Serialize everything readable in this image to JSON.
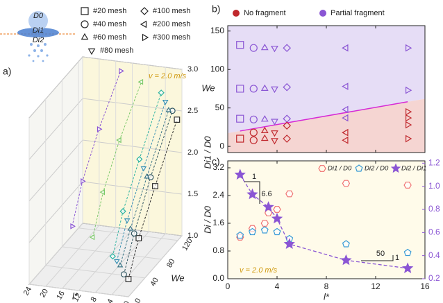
{
  "chart_data": [
    {
      "type": "scatter3d",
      "panel_label": "a)",
      "schematic_labels": [
        "D0",
        "Di1",
        "Di2"
      ],
      "annotation": "v = 2.0 m/s",
      "xlabel": "l*",
      "ylabel": "We",
      "zlabel": "Di1 / D0",
      "xlim": [
        0,
        24
      ],
      "xticks": [
        0,
        4,
        8,
        12,
        16,
        20,
        24
      ],
      "ylim": [
        0,
        130
      ],
      "yticks": [
        0,
        40,
        80,
        120
      ],
      "zlim": [
        1,
        3
      ],
      "zticks": [
        {
          "value": 1,
          "label": "1.0"
        },
        {
          "value": 1.5,
          "label": "1.5"
        },
        {
          "value": 2,
          "label": "2.0"
        },
        {
          "value": 2.5,
          "label": "2.5"
        },
        {
          "value": 3,
          "label": "3.0"
        }
      ],
      "series": [
        {
          "name": "#20 mesh",
          "marker": "square",
          "color": "#2b2b2b",
          "x": 1,
          "y": [
            10,
            35,
            75,
            128
          ],
          "values": [
            1.15,
            1.5,
            1.9,
            2.4
          ]
        },
        {
          "name": "#40 mesh",
          "marker": "circle",
          "color": "#2f5560",
          "x": 2.1,
          "y": [
            10,
            35,
            75,
            128
          ],
          "values": [
            1.2,
            1.55,
            2.0,
            2.5
          ]
        },
        {
          "name": "#60 mesh",
          "marker": "triangle-up",
          "color": "#3b7587",
          "x": 3,
          "y": [
            10,
            35,
            75,
            128
          ],
          "values": [
            1.3,
            1.6,
            2.0,
            2.5
          ]
        },
        {
          "name": "#80 mesh",
          "marker": "triangle-down",
          "color": "#3a92b4",
          "x": 3.8,
          "y": [
            10,
            35,
            75,
            128
          ],
          "values": [
            1.35,
            1.7,
            2.1,
            2.6
          ]
        },
        {
          "name": "#100 mesh",
          "marker": "diamond",
          "color": "#2bb3a0",
          "x": 4.8,
          "y": [
            10,
            35,
            75,
            128
          ],
          "values": [
            1.4,
            1.8,
            2.2,
            2.7
          ]
        },
        {
          "name": "#200 mesh",
          "marker": "triangle-left",
          "color": "#7cc96a",
          "x": 9.6,
          "y": [
            10,
            35,
            75,
            128
          ],
          "values": [
            1.6,
            2.0,
            2.4,
            2.8
          ]
        },
        {
          "name": "#300 mesh",
          "marker": "triangle-right",
          "color": "#8a55d4",
          "x": 14.6,
          "y": [
            10,
            35,
            75,
            128
          ],
          "values": [
            1.7,
            2.1,
            2.5,
            2.9
          ]
        }
      ]
    },
    {
      "type": "scatter",
      "panel_label": "b)",
      "ylabel": "We",
      "legend": [
        {
          "name": "No fragment",
          "color": "#c0282d"
        },
        {
          "name": "Partial fragment",
          "color": "#8a55d4"
        }
      ],
      "region_colors": [
        "#f5d5d2",
        "#e6ddf6"
      ],
      "xlim": [
        0,
        16
      ],
      "xticks": [
        0,
        4,
        8,
        12,
        16
      ],
      "ylim": [
        -8,
        157
      ],
      "yticks": [
        0,
        50,
        100,
        150
      ],
      "boundary": {
        "color": "#d62ad6",
        "x": [
          1,
          14.6
        ],
        "values": [
          20,
          58
        ]
      },
      "series": [
        {
          "marker": "square",
          "x": 1,
          "values": [
            132,
            75,
            36,
            10
          ],
          "outcome": [
            1,
            1,
            1,
            0
          ]
        },
        {
          "marker": "circle",
          "x": 2.1,
          "values": [
            128,
            75,
            35,
            18,
            8
          ],
          "outcome": [
            1,
            1,
            1,
            0,
            0
          ]
        },
        {
          "marker": "triangle-up",
          "x": 3,
          "values": [
            128,
            75,
            35,
            20,
            10
          ],
          "outcome": [
            1,
            1,
            1,
            0,
            0
          ]
        },
        {
          "marker": "triangle-down",
          "x": 3.8,
          "values": [
            128,
            75,
            33,
            18,
            8
          ],
          "outcome": [
            1,
            1,
            1,
            0,
            0
          ]
        },
        {
          "marker": "diamond",
          "x": 4.8,
          "values": [
            128,
            77,
            36,
            27,
            10
          ],
          "outcome": [
            1,
            1,
            1,
            0,
            0
          ]
        },
        {
          "marker": "triangle-left",
          "x": 9.6,
          "values": [
            128,
            78,
            48,
            37,
            18,
            8
          ],
          "outcome": [
            1,
            1,
            1,
            1,
            0,
            0
          ]
        },
        {
          "marker": "triangle-right",
          "x": 14.6,
          "values": [
            128,
            73,
            45,
            37,
            28,
            10
          ],
          "outcome": [
            1,
            1,
            0,
            0,
            0,
            0
          ]
        }
      ]
    },
    {
      "type": "scatter",
      "panel_label": "c)",
      "xlabel": "l*",
      "ylabel": "Di / D0",
      "annotation": "v = 2.0 m/s",
      "slope_labels": [
        "1",
        "6.6",
        "50",
        "1"
      ],
      "xlim": [
        0,
        16
      ],
      "xticks": [
        0,
        4,
        8,
        12,
        16
      ],
      "ylim": [
        0,
        3.4
      ],
      "yticks": [
        {
          "value": 0,
          "label": "0.0"
        },
        {
          "value": 0.8,
          "label": "0.8"
        },
        {
          "value": 1.6,
          "label": "1.6"
        },
        {
          "value": 2.4,
          "label": "2.4"
        },
        {
          "value": 3.2,
          "label": "3.2"
        }
      ],
      "y2lim": [
        0.2,
        1.22
      ],
      "y2ticks": [
        0.2,
        0.4,
        0.6,
        0.8,
        {
          "value": 1,
          "label": "1.0"
        },
        1.2
      ],
      "series": [
        {
          "name": "Di1 / D0",
          "marker": "hexagon",
          "color": "#f07070",
          "x": [
            1,
            2,
            3,
            3.3,
            4,
            5,
            9.6,
            14.6
          ],
          "values": [
            1.2,
            1.45,
            1.6,
            1.9,
            2.0,
            2.45,
            2.75,
            2.7
          ]
        },
        {
          "name": "Di2 / D0",
          "marker": "pentagon",
          "color": "#3a9bd6",
          "x": [
            1,
            2,
            3,
            4,
            5,
            9.6,
            14.6
          ],
          "values": [
            1.25,
            1.35,
            1.4,
            1.35,
            1.15,
            1.0,
            0.75
          ]
        },
        {
          "name": "Di2 / Di1",
          "marker": "star",
          "color": "#8a55d4",
          "axis": "y2",
          "x": [
            1,
            2,
            3.3,
            4,
            5,
            9.6,
            14.6
          ],
          "values": [
            1.1,
            0.93,
            0.82,
            0.72,
            0.5,
            0.36,
            0.29
          ]
        }
      ]
    }
  ]
}
